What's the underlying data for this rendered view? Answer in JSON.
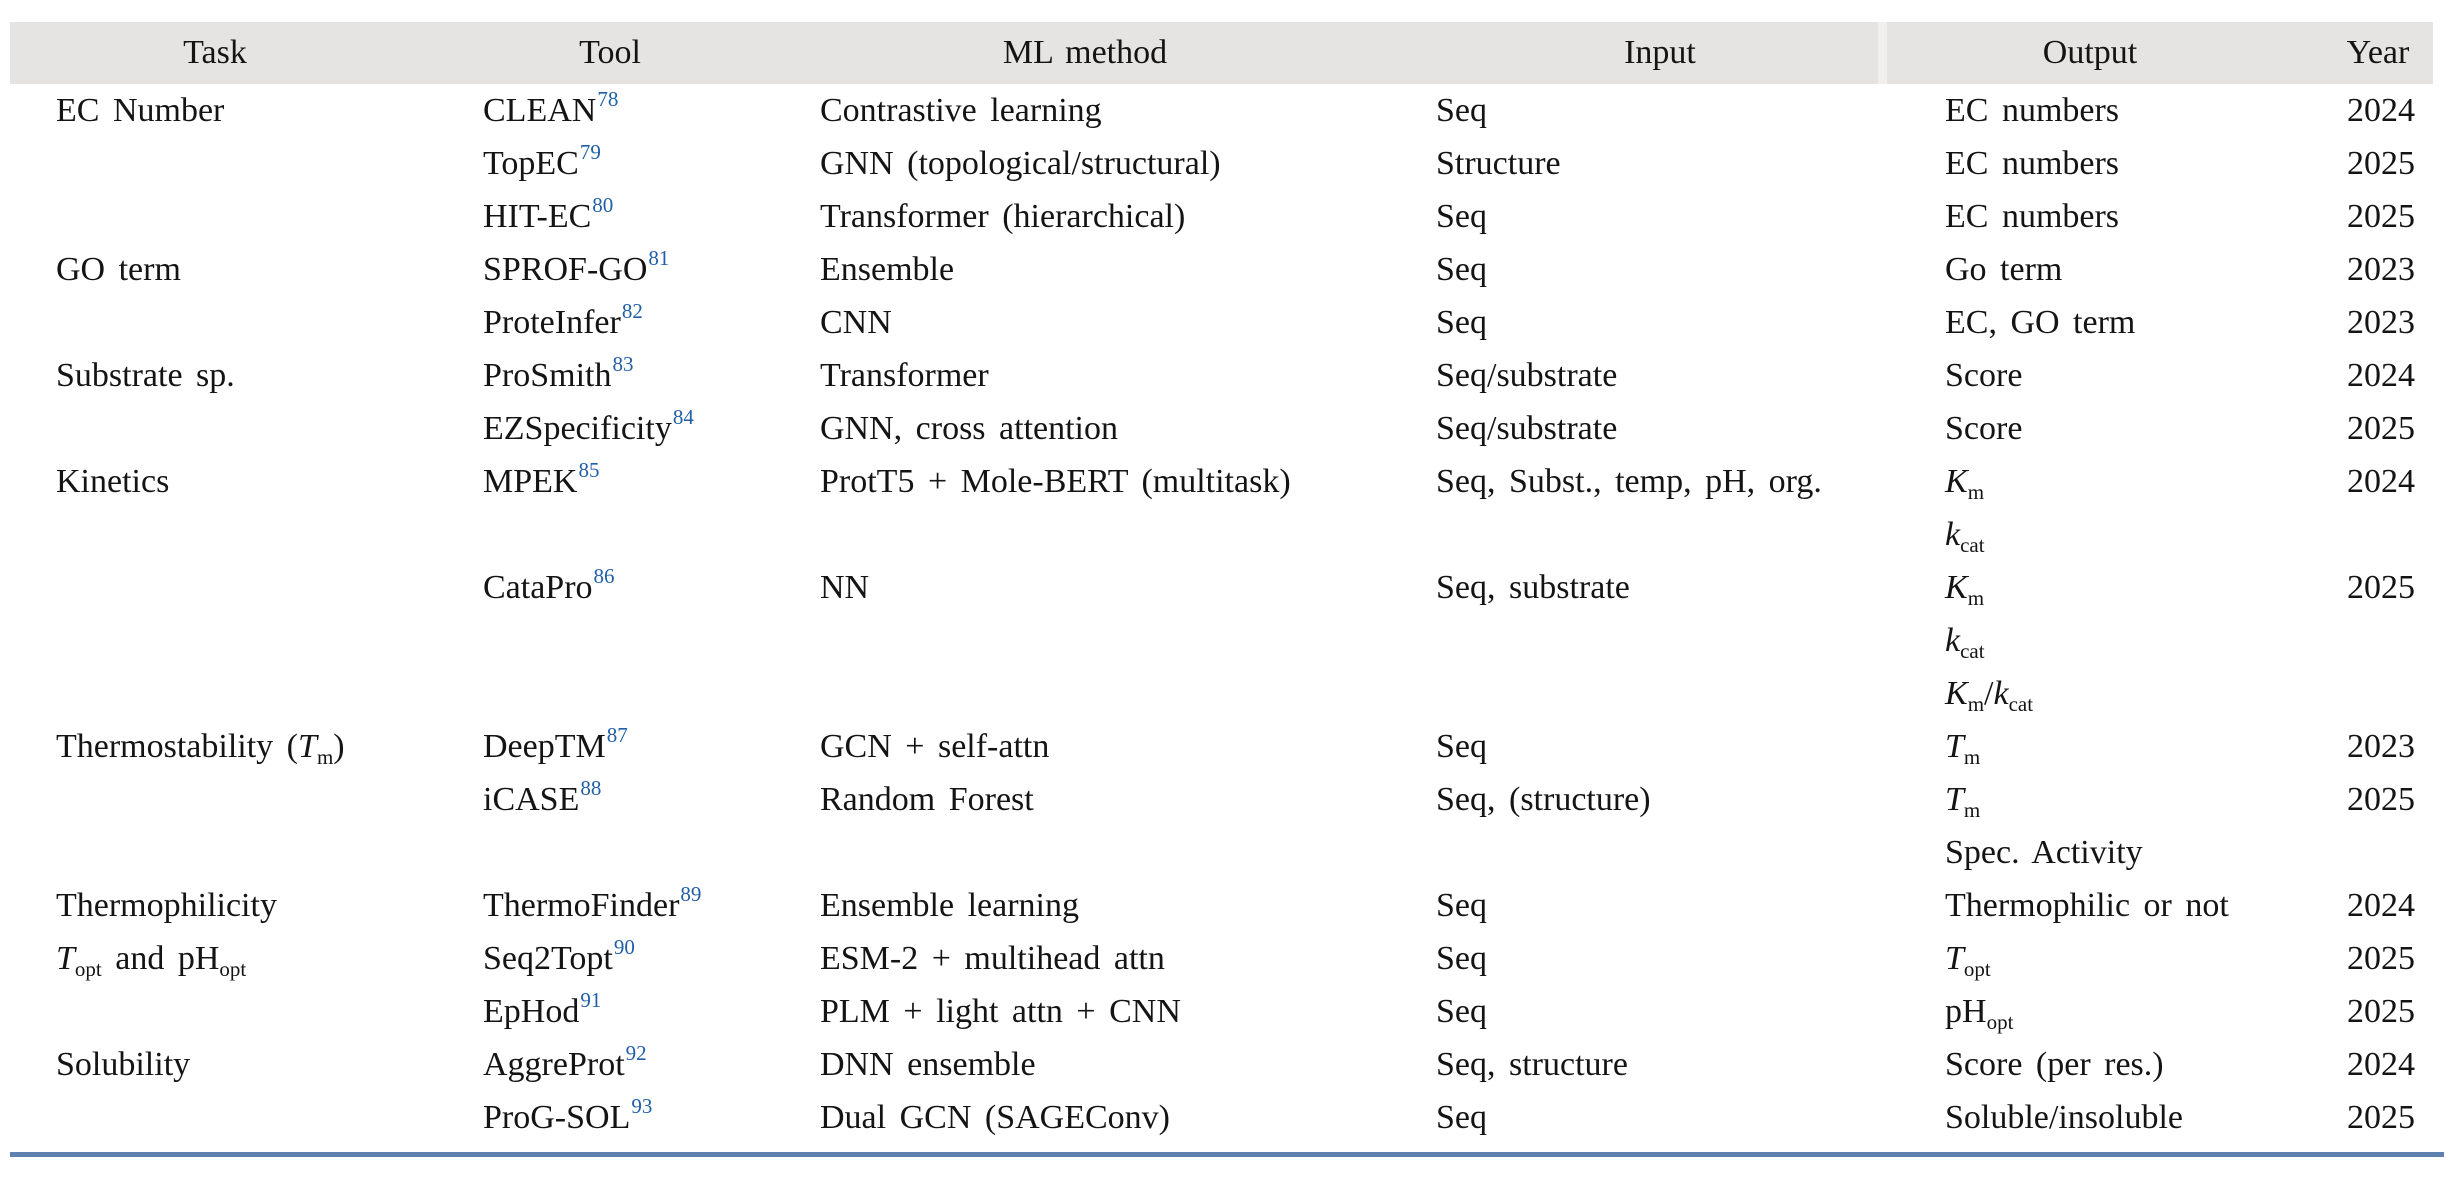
{
  "table": {
    "headers": [
      "Task",
      "Tool",
      "ML method",
      "Input",
      "Output",
      "Year"
    ],
    "rows": [
      {
        "task": [
          {
            "t": "EC Number"
          }
        ],
        "tool": {
          "name": "CLEAN",
          "ref": "78"
        },
        "method": "Contrastive learning",
        "input": "Seq",
        "outputs": [
          [
            {
              "t": "EC numbers"
            }
          ]
        ],
        "year": "2024"
      },
      {
        "task": [],
        "tool": {
          "name": "TopEC",
          "ref": "79"
        },
        "method": "GNN (topological/structural)",
        "input": "Structure",
        "outputs": [
          [
            {
              "t": "EC numbers"
            }
          ]
        ],
        "year": "2025"
      },
      {
        "task": [],
        "tool": {
          "name": "HIT-EC",
          "ref": "80"
        },
        "method": "Transformer (hierarchical)",
        "input": "Seq",
        "outputs": [
          [
            {
              "t": "EC numbers"
            }
          ]
        ],
        "year": "2025"
      },
      {
        "task": [
          {
            "t": "GO term"
          }
        ],
        "tool": {
          "name": "SPROF-GO",
          "ref": "81"
        },
        "method": "Ensemble",
        "input": "Seq",
        "outputs": [
          [
            {
              "t": "Go term"
            }
          ]
        ],
        "year": "2023"
      },
      {
        "task": [],
        "tool": {
          "name": "ProteInfer",
          "ref": "82"
        },
        "method": "CNN",
        "input": "Seq",
        "outputs": [
          [
            {
              "t": "EC, GO term"
            }
          ]
        ],
        "year": "2023"
      },
      {
        "task": [
          {
            "t": "Substrate sp."
          }
        ],
        "tool": {
          "name": "ProSmith",
          "ref": "83"
        },
        "method": "Transformer",
        "input": "Seq/substrate",
        "outputs": [
          [
            {
              "t": "Score"
            }
          ]
        ],
        "year": "2024"
      },
      {
        "task": [],
        "tool": {
          "name": "EZSpecificity",
          "ref": "84"
        },
        "method": "GNN, cross attention",
        "input": "Seq/substrate",
        "outputs": [
          [
            {
              "t": "Score"
            }
          ]
        ],
        "year": "2025"
      },
      {
        "task": [
          {
            "t": "Kinetics"
          }
        ],
        "tool": {
          "name": "MPEK",
          "ref": "85"
        },
        "method": "ProtT5 + Mole-BERT (multitask)",
        "input": "Seq, Subst., temp, pH, org.",
        "outputs": [
          [
            {
              "t": "K",
              "i": true
            },
            {
              "t": "m",
              "sub": true
            }
          ],
          [
            {
              "t": "k",
              "i": true
            },
            {
              "t": "cat",
              "sub": true
            }
          ]
        ],
        "year": "2024"
      },
      {
        "task": [],
        "tool": {
          "name": "CataPro",
          "ref": "86"
        },
        "method": "NN",
        "input": "Seq, substrate",
        "outputs": [
          [
            {
              "t": "K",
              "i": true
            },
            {
              "t": "m",
              "sub": true
            }
          ],
          [
            {
              "t": "k",
              "i": true
            },
            {
              "t": "cat",
              "sub": true
            }
          ],
          [
            {
              "t": "K",
              "i": true
            },
            {
              "t": "m",
              "sub": true
            },
            {
              "t": "/"
            },
            {
              "t": "k",
              "i": true
            },
            {
              "t": "cat",
              "sub": true
            }
          ]
        ],
        "year": "2025"
      },
      {
        "task": [
          {
            "t": "Thermostability ("
          },
          {
            "t": "T",
            "i": true
          },
          {
            "t": "m",
            "sub": true
          },
          {
            "t": ")"
          }
        ],
        "tool": {
          "name": "DeepTM",
          "ref": "87"
        },
        "method": "GCN + self-attn",
        "input": "Seq",
        "outputs": [
          [
            {
              "t": "T",
              "i": true
            },
            {
              "t": "m",
              "sub": true
            }
          ]
        ],
        "year": "2023"
      },
      {
        "task": [],
        "tool": {
          "name": "iCASE",
          "ref": "88"
        },
        "method": "Random Forest",
        "input": "Seq, (structure)",
        "outputs": [
          [
            {
              "t": "T",
              "i": true
            },
            {
              "t": "m",
              "sub": true
            }
          ],
          [
            {
              "t": "Spec. Activity"
            }
          ]
        ],
        "year": "2025"
      },
      {
        "task": [
          {
            "t": "Thermophilicity"
          }
        ],
        "tool": {
          "name": "ThermoFinder",
          "ref": "89"
        },
        "method": "Ensemble learning",
        "input": "Seq",
        "outputs": [
          [
            {
              "t": "Thermophilic or not"
            }
          ]
        ],
        "year": "2024"
      },
      {
        "task": [
          {
            "t": "T",
            "i": true
          },
          {
            "t": "opt",
            "sub": true
          },
          {
            "t": " and pH"
          },
          {
            "t": "opt",
            "sub": true
          }
        ],
        "tool": {
          "name": "Seq2Topt",
          "ref": "90"
        },
        "method": "ESM-2 + multihead attn",
        "input": "Seq",
        "outputs": [
          [
            {
              "t": "T",
              "i": true
            },
            {
              "t": "opt",
              "sub": true
            }
          ]
        ],
        "year": "2025"
      },
      {
        "task": [],
        "tool": {
          "name": "EpHod",
          "ref": "91"
        },
        "method": "PLM + light attn + CNN",
        "input": "Seq",
        "outputs": [
          [
            {
              "t": "pH"
            },
            {
              "t": "opt",
              "sub": true
            }
          ]
        ],
        "year": "2025"
      },
      {
        "task": [
          {
            "t": "Solubility"
          }
        ],
        "tool": {
          "name": "AggreProt",
          "ref": "92"
        },
        "method": "DNN ensemble",
        "input": "Seq, structure",
        "outputs": [
          [
            {
              "t": "Score (per res.)"
            }
          ]
        ],
        "year": "2024"
      },
      {
        "task": [],
        "tool": {
          "name": "ProG-SOL",
          "ref": "93"
        },
        "method": "Dual GCN (SAGEConv)",
        "input": "Seq",
        "outputs": [
          [
            {
              "t": "Soluble/insoluble"
            }
          ]
        ],
        "year": "2025"
      }
    ]
  },
  "colors": {
    "header_bg": "#e5e4e2",
    "header_seam": "#f0efee",
    "text": "#141414",
    "reference_blue": "#2160a8",
    "bottom_rule": "#6080b0"
  }
}
